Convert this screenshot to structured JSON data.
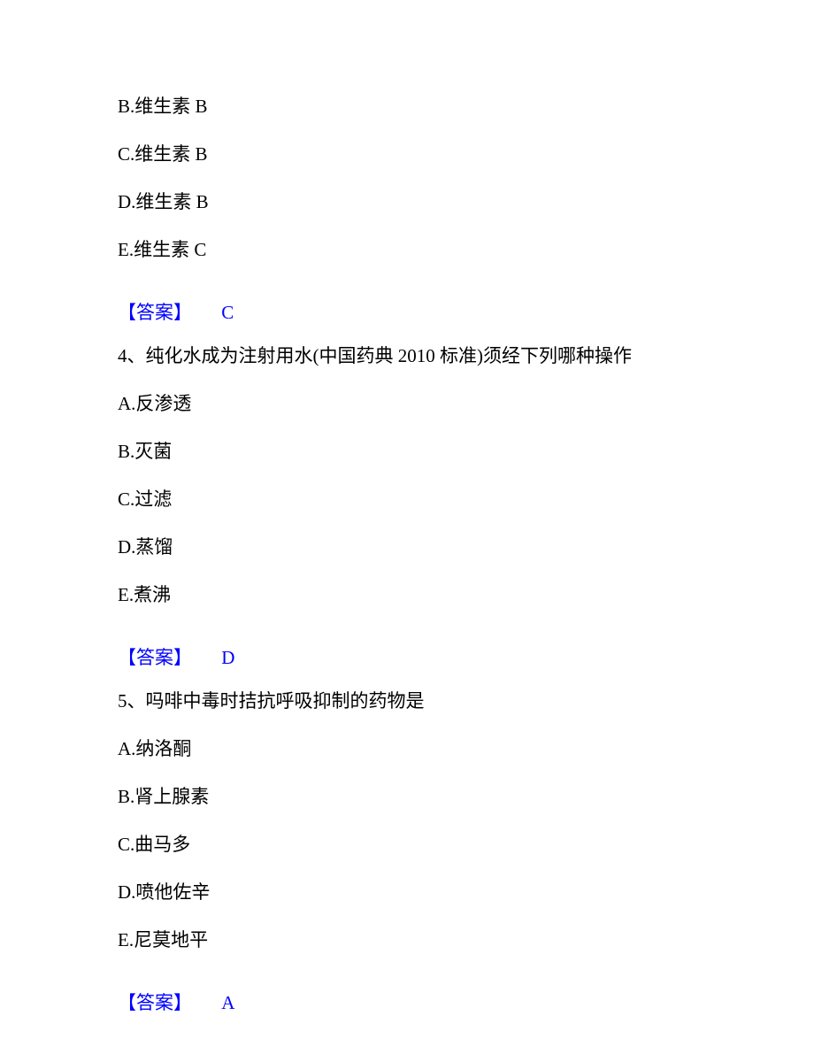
{
  "q3_partial": {
    "options": {
      "b": "B.维生素 B",
      "c": "C.维生素 B",
      "d": "D.维生素 B",
      "e": "E.维生素 C"
    },
    "answer_label": "【答案】",
    "answer_value": "C"
  },
  "q4": {
    "question": "4、纯化水成为注射用水(中国药典 2010 标准)须经下列哪种操作",
    "options": {
      "a": "A.反渗透",
      "b": "B.灭菌",
      "c": "C.过滤",
      "d": "D.蒸馏",
      "e": "E.煮沸"
    },
    "answer_label": "【答案】",
    "answer_value": "D"
  },
  "q5": {
    "question": "5、吗啡中毒时拮抗呼吸抑制的药物是",
    "options": {
      "a": "A.纳洛酮",
      "b": "B.肾上腺素",
      "c": "C.曲马多",
      "d": "D.喷他佐辛",
      "e": "E.尼莫地平"
    },
    "answer_label": "【答案】",
    "answer_value": "A"
  },
  "colors": {
    "text": "#000000",
    "answer": "#0000ff",
    "background": "#ffffff"
  }
}
